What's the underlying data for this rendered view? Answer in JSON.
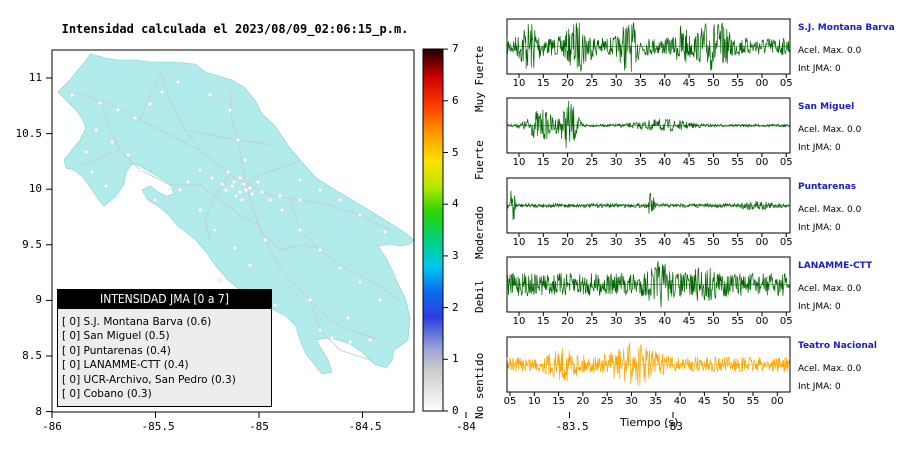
{
  "map": {
    "title": "Intensidad calculada el 2023/08/09_02:06:15_p.m.",
    "x_ticks": [
      "-86",
      "-85.5",
      "-85",
      "-84.5",
      "-84",
      "-83.5",
      "-83"
    ],
    "y_ticks": [
      "11",
      "10.5",
      "10",
      "9.5",
      "9",
      "8.5",
      "8"
    ],
    "legend": {
      "header": "INTENSIDAD JMA [0 a 7]",
      "items": [
        {
          "label": "[ 0]  S.J. Montana Barva (0.6)"
        },
        {
          "label": "[ 0]  San Miguel (0.5)"
        },
        {
          "label": "[ 0]  Puntarenas (0.4)"
        },
        {
          "label": "[ 0]  LANAMME-CTT (0.4)"
        },
        {
          "label": "[ 0]  UCR-Archivo, San Pedro (0.3)"
        },
        {
          "label": "[ 0]  Cobano (0.3)"
        }
      ]
    }
  },
  "colorbar": {
    "ticks": [
      "0",
      "1",
      "2",
      "3",
      "4",
      "5",
      "6",
      "7"
    ],
    "labels": [
      "No sentido",
      "Debil",
      "Moderado",
      "Fuerte",
      "Muy Fuerte"
    ]
  },
  "stations": [
    {
      "name": "S.J. Montana Barva",
      "acel": "Acel. Max. 0.0",
      "int": "Int JMA: 0",
      "color": "#006400",
      "ticks": [
        "10",
        "15",
        "20",
        "25",
        "30",
        "35",
        "40",
        "45",
        "50",
        "55",
        "00",
        "05"
      ]
    },
    {
      "name": "San Miguel",
      "acel": "Acel. Max. 0.0",
      "int": "Int JMA: 0",
      "color": "#006400",
      "ticks": [
        "10",
        "15",
        "20",
        "25",
        "30",
        "35",
        "40",
        "45",
        "50",
        "55",
        "00",
        "05"
      ]
    },
    {
      "name": "Puntarenas",
      "acel": "Acel. Max. 0.0",
      "int": "Int JMA: 0",
      "color": "#006400",
      "ticks": [
        "10",
        "15",
        "20",
        "25",
        "30",
        "35",
        "40",
        "45",
        "50",
        "55",
        "00",
        "05"
      ]
    },
    {
      "name": "LANAMME-CTT",
      "acel": "Acel. Max. 0.0",
      "int": "Int JMA: 0",
      "color": "#006400",
      "ticks": [
        "10",
        "15",
        "20",
        "25",
        "30",
        "35",
        "40",
        "45",
        "50",
        "55",
        "00",
        "05"
      ]
    },
    {
      "name": "Teatro Nacional",
      "acel": "Acel. Max. 0.0",
      "int": "Int JMA: 0",
      "color": "#FFA500",
      "ticks": [
        "05",
        "10",
        "15",
        "20",
        "25",
        "30",
        "35",
        "40",
        "45",
        "50",
        "55",
        "00"
      ]
    }
  ],
  "time_axis_label": "Tiempo (s)",
  "chart_data": [
    {
      "type": "map",
      "title": "Intensidad calculada el 2023/08/09_02:06:15_p.m.",
      "xlim": [
        -86,
        -82.6
      ],
      "ylim": [
        8,
        11.3
      ],
      "legend": "bottom-left"
    },
    {
      "type": "colorbar",
      "range": [
        0,
        7
      ],
      "categories": [
        "No sentido",
        "Debil",
        "Moderado",
        "Fuerte",
        "Muy Fuerte"
      ]
    },
    {
      "type": "line",
      "xlabel": "Tiempo (s)",
      "series": [
        {
          "name": "S.J. Montana Barva",
          "peak": 0.0
        },
        {
          "name": "San Miguel",
          "peak": 0.0
        },
        {
          "name": "Puntarenas",
          "peak": 0.0
        },
        {
          "name": "LANAMME-CTT",
          "peak": 0.0
        },
        {
          "name": "Teatro Nacional",
          "peak": 0.0
        }
      ]
    }
  ]
}
